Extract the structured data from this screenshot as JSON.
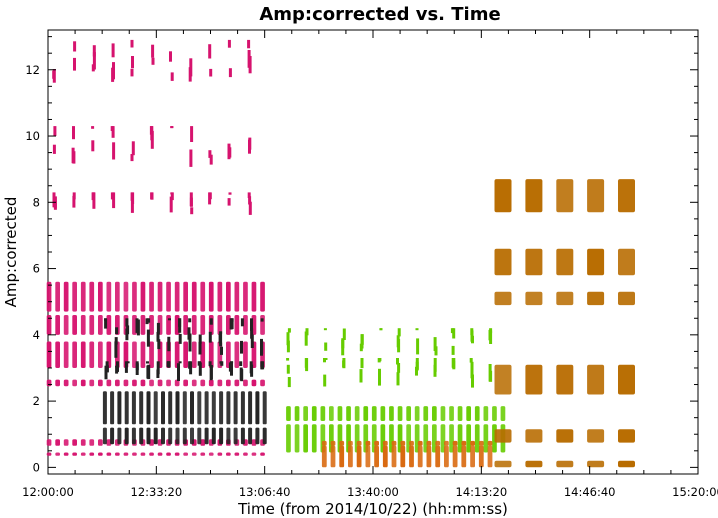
{
  "chart_data": {
    "type": "scatter",
    "title": "Amp:corrected vs. Time",
    "xlabel": "Time (from 2014/10/22) (hh:mm:ss)",
    "ylabel": "Amp:corrected",
    "x_unit": "time of day (hh:mm:ss)",
    "xlim": [
      "12:00:00",
      "15:20:00"
    ],
    "ylim": [
      -0.2,
      13.2
    ],
    "x_ticks": [
      "12:00:00",
      "12:33:20",
      "13:06:40",
      "13:40:00",
      "14:13:20",
      "14:46:40",
      "15:20:00"
    ],
    "y_ticks": [
      0,
      2,
      4,
      6,
      8,
      10,
      12
    ],
    "grid": false,
    "legend": "none",
    "series": [
      {
        "color": "#d6136e",
        "scans": {
          "start": "12:00:20",
          "end": "13:06:00",
          "count": 26,
          "bands": [
            [
              0.35,
              0.45
            ],
            [
              0.65,
              0.85
            ],
            [
              2.45,
              2.65
            ],
            [
              3.0,
              3.8
            ],
            [
              4.0,
              4.6
            ],
            [
              4.7,
              5.6
            ]
          ]
        },
        "sparse": {
          "start": "12:02:00",
          "end": "13:02:00",
          "count": 11,
          "levels": [
            [
              11.6,
              12.9
            ],
            [
              9.0,
              10.3
            ],
            [
              7.6,
              8.3
            ]
          ]
        }
      },
      {
        "color": "#222222",
        "scans": {
          "start": "12:17:30",
          "end": "13:06:40",
          "count": 23,
          "bands": [
            [
              0.7,
              1.2
            ],
            [
              1.3,
              2.3
            ]
          ]
        },
        "sparse": {
          "start": "12:18:00",
          "end": "13:06:00",
          "count": 16,
          "levels": [
            [
              2.6,
              3.2
            ],
            [
              3.3,
              4.5
            ]
          ]
        }
      },
      {
        "color": "#66cc00",
        "scans": {
          "start": "13:14:00",
          "end": "14:20:00",
          "count": 26,
          "bands": [
            [
              0.45,
              1.3
            ],
            [
              1.4,
              1.85
            ]
          ]
        },
        "sparse": {
          "start": "13:14:00",
          "end": "14:16:00",
          "count": 12,
          "levels": [
            [
              2.4,
              3.3
            ],
            [
              3.35,
              4.2
            ]
          ]
        }
      },
      {
        "color": "#d9680e",
        "scans": {
          "start": "13:25:00",
          "end": "14:16:00",
          "count": 20,
          "bands": [
            [
              0.0,
              0.65
            ],
            [
              0.65,
              0.8
            ]
          ]
        }
      },
      {
        "color": "#b86c00",
        "scans": {
          "start": "14:20:00",
          "end": "14:58:00",
          "count": 5,
          "bands": [
            [
              0.0,
              0.2
            ],
            [
              0.75,
              1.15
            ],
            [
              2.2,
              3.1
            ],
            [
              4.9,
              5.3
            ],
            [
              5.8,
              6.6
            ],
            [
              7.7,
              8.7
            ]
          ]
        }
      }
    ]
  }
}
